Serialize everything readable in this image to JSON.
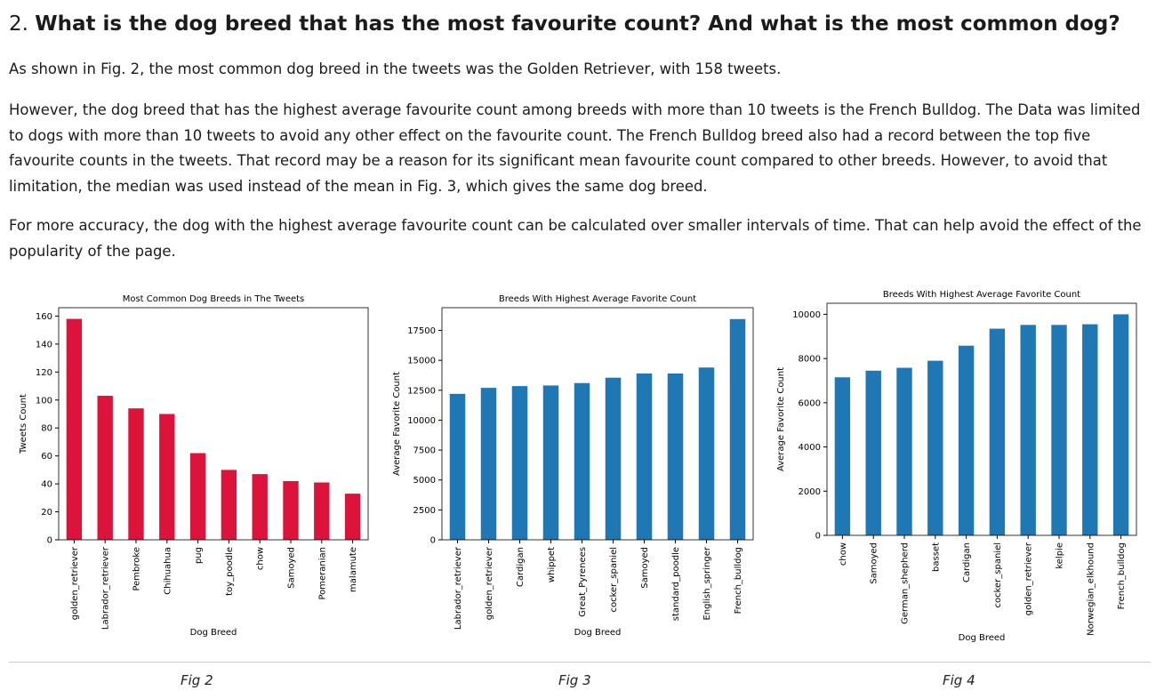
{
  "heading": {
    "number": "2.",
    "text": "What is the dog breed that has the most favourite count? And what is the most common dog?"
  },
  "paragraphs": [
    "As shown in Fig. 2, the most common dog breed in the tweets was the Golden Retriever, with 158 tweets.",
    "However, the dog breed that has the highest average favourite count among breeds with more than 10 tweets is the French Bulldog. The Data was limited to dogs with more than 10 tweets to avoid any other effect on the favourite count. The French Bulldog breed also had a record between the top five favourite counts in the tweets. That record may be a reason for its significant mean favourite count compared to other breeds. However, to avoid that limitation, the median was used instead of the mean in Fig. 3, which gives the same dog breed.",
    "For more accuracy, the dog with the highest average favourite count can be calculated over smaller intervals of time. That can help avoid the effect of the popularity of the page."
  ],
  "captions": [
    "Fig 2",
    "Fig 3",
    "Fig 4"
  ],
  "chart_data": [
    {
      "type": "bar",
      "title": "Most Common Dog Breeds in The Tweets",
      "x_label": "Dog Breed",
      "y_label": "Tweets Count",
      "categories": [
        "golden_retriever",
        "Labrador_retriever",
        "Pembroke",
        "Chihuahua",
        "pug",
        "toy_poodle",
        "chow",
        "Samoyed",
        "Pomeranian",
        "malamute"
      ],
      "values": [
        158,
        103,
        94,
        90,
        62,
        50,
        47,
        42,
        41,
        33
      ],
      "color": "#dc143c",
      "ylim": [
        0,
        166
      ],
      "yticks": [
        0,
        20,
        40,
        60,
        80,
        100,
        120,
        140,
        160
      ]
    },
    {
      "type": "bar",
      "title": "Breeds With Highest Average Favorite Count",
      "x_label": "Dog Breed",
      "y_label": "Average Favorite Count",
      "categories": [
        "Labrador_retriever",
        "golden_retriever",
        "Cardigan",
        "whippet",
        "Great_Pyrenees",
        "cocker_spaniel",
        "Samoyed",
        "standard_poodle",
        "English_springer",
        "French_bulldog"
      ],
      "values": [
        12200,
        12700,
        12850,
        12900,
        13100,
        13550,
        13900,
        13900,
        14400,
        18450
      ],
      "color": "#1f77b4",
      "ylim": [
        0,
        19400
      ],
      "yticks": [
        0,
        2500,
        5000,
        7500,
        10000,
        12500,
        15000,
        17500
      ]
    },
    {
      "type": "bar",
      "title": "Breeds With Highest Average Favorite Count",
      "x_label": "Dog Breed",
      "y_label": "Average Favorite Count",
      "categories": [
        "chow",
        "Samoyed",
        "German_shepherd",
        "basset",
        "Cardigan",
        "cocker_spaniel",
        "golden_retriever",
        "kelpie",
        "Norwegian_elkhound",
        "French_bulldog"
      ],
      "values": [
        7150,
        7450,
        7580,
        7900,
        8580,
        9350,
        9520,
        9520,
        9550,
        10000
      ],
      "color": "#1f77b4",
      "ylim": [
        0,
        10500
      ],
      "yticks": [
        0,
        2000,
        4000,
        6000,
        8000,
        10000
      ]
    }
  ]
}
